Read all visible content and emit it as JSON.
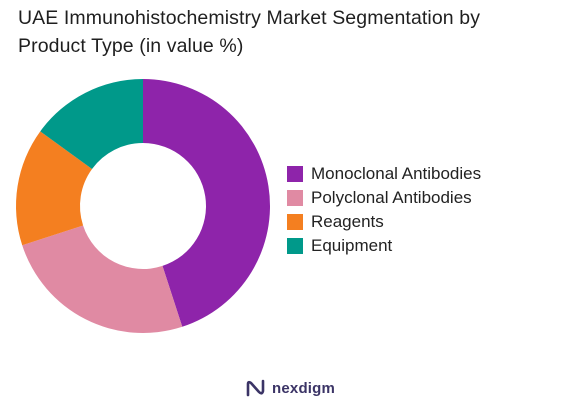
{
  "title": "UAE Immunohistochemistry Market Segmentation by Product Type (in value %)",
  "brand": {
    "name": "nexdigm",
    "logo_icon": "nexdigm-logo-icon"
  },
  "chart_data": {
    "type": "pie",
    "donut": true,
    "title": "UAE Immunohistochemistry Market Segmentation by Product Type (in value %)",
    "legend_position": "right",
    "categories": [
      "Monoclonal Antibodies",
      "Polyclonal Antibodies",
      "Reagents",
      "Equipment"
    ],
    "values": [
      45,
      25,
      15,
      15
    ],
    "colors": [
      "#8e24aa",
      "#e08aa3",
      "#f47f20",
      "#00998a"
    ]
  }
}
